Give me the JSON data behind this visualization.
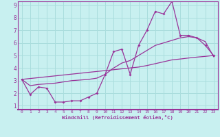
{
  "xlabel": "Windchill (Refroidissement éolien,°C)",
  "background_color": "#c8f0f0",
  "grid_color": "#aadddd",
  "line_color": "#993399",
  "xlim": [
    -0.5,
    23.5
  ],
  "ylim": [
    0.7,
    9.3
  ],
  "xticks": [
    0,
    1,
    2,
    3,
    4,
    5,
    6,
    7,
    8,
    9,
    10,
    11,
    12,
    13,
    14,
    15,
    16,
    17,
    18,
    19,
    20,
    21,
    22,
    23
  ],
  "yticks": [
    1,
    2,
    3,
    4,
    5,
    6,
    7,
    8,
    9
  ],
  "line1_x": [
    0,
    1,
    2,
    3,
    4,
    5,
    6,
    7,
    8,
    9,
    10,
    11,
    12,
    13,
    14,
    15,
    16,
    17,
    18,
    19,
    20,
    21,
    22,
    23
  ],
  "line1_y": [
    3.1,
    1.9,
    2.5,
    2.4,
    1.3,
    1.3,
    1.4,
    1.4,
    1.7,
    2.0,
    3.5,
    5.3,
    5.5,
    3.5,
    5.8,
    7.0,
    8.5,
    8.3,
    9.3,
    6.6,
    6.6,
    6.4,
    5.8,
    5.0
  ],
  "line2_x": [
    0,
    1,
    2,
    3,
    4,
    5,
    6,
    7,
    8,
    9,
    10,
    11,
    12,
    13,
    14,
    15,
    16,
    17,
    18,
    19,
    20,
    21,
    22,
    23
  ],
  "line2_y": [
    3.1,
    3.17,
    3.24,
    3.31,
    3.38,
    3.45,
    3.52,
    3.59,
    3.66,
    3.73,
    3.8,
    3.87,
    3.94,
    4.01,
    4.08,
    4.2,
    4.35,
    4.5,
    4.65,
    4.72,
    4.8,
    4.87,
    4.93,
    5.0
  ],
  "line3_x": [
    0,
    1,
    2,
    3,
    4,
    5,
    6,
    7,
    8,
    9,
    10,
    11,
    12,
    13,
    14,
    15,
    16,
    17,
    18,
    19,
    20,
    21,
    22,
    23
  ],
  "line3_y": [
    3.1,
    2.6,
    2.7,
    2.75,
    2.8,
    2.9,
    3.0,
    3.05,
    3.1,
    3.2,
    3.5,
    4.0,
    4.4,
    4.6,
    5.0,
    5.4,
    5.8,
    6.0,
    6.2,
    6.4,
    6.5,
    6.4,
    6.1,
    4.9
  ]
}
